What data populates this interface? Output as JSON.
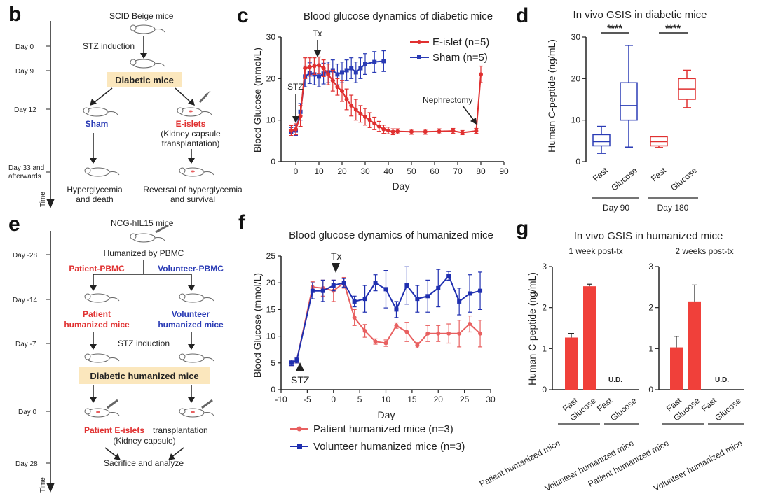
{
  "panels": {
    "b": {
      "letter": "b",
      "top_label": "SCID Beige mice",
      "stz": "STZ induction",
      "diabetic": "Diabetic mice",
      "sham": "Sham",
      "eislets": "E-islets",
      "kidney1": "(Kidney capsule",
      "kidney2": "transplantation)",
      "hyper1": "Hyperglycemia",
      "hyper2": "and death",
      "rev1": "Reversal of hyperglycemia",
      "rev2": "and survival",
      "days": [
        "Day 0",
        "Day 9",
        "Day 12",
        "Day 33 and",
        "afterwards"
      ],
      "time": "Time"
    },
    "e": {
      "letter": "e",
      "top_label": "NCG-hIL15 mice",
      "humanized": "Humanized by PBMC",
      "patient_pbmc": "Patient-PBMC",
      "volunteer_pbmc": "Volunteer-PBMC",
      "patient1": "Patient",
      "patient2": "humanized mice",
      "volunteer1": "Volunteer",
      "volunteer2": "humanized mice",
      "stz": "STZ induction",
      "diabetic": "Diabetic humanized mice",
      "eislets_red": "Patient E-islets",
      "transplant": " transplantation",
      "kidney": "(Kidney capsule)",
      "sacrifice": "Sacrifice and analyze",
      "days": [
        "Day -28",
        "Day -14",
        "Day -7",
        "Day 0",
        "Day 28"
      ],
      "time": "Time"
    }
  },
  "colors": {
    "red": "#e03030",
    "blue": "#2a3bb5",
    "pink": "#e86060",
    "navy": "#1f2fb0",
    "highlight": "#fbe7bd"
  },
  "chart_data": [
    {
      "id": "c",
      "letter": "c",
      "type": "line",
      "title": "Blood glucose dynamics of diabetic mice",
      "xlabel": "Day",
      "ylabel": "Blood Glucose (mmol/L)",
      "xlim": [
        -5,
        90
      ],
      "ylim": [
        0,
        30
      ],
      "xticks": [
        0,
        10,
        20,
        30,
        40,
        50,
        60,
        70,
        80,
        90
      ],
      "yticks": [
        0,
        10,
        20,
        30
      ],
      "annotations": [
        "STZ",
        "Tx",
        "Nephrectomy"
      ],
      "series": [
        {
          "name": "E-islet (n=5)",
          "color": "#e03030",
          "x": [
            -2,
            0,
            2,
            4,
            6,
            8,
            10,
            12,
            14,
            16,
            18,
            20,
            22,
            24,
            26,
            28,
            30,
            32,
            34,
            36,
            38,
            40,
            42,
            44,
            50,
            56,
            62,
            68,
            72,
            78,
            80
          ],
          "y": [
            7.5,
            7.8,
            11,
            22.5,
            22.8,
            23,
            23.2,
            22.5,
            21,
            19.5,
            18,
            17,
            15,
            13.5,
            12.5,
            11.5,
            10.8,
            10,
            9.2,
            8.5,
            7.8,
            7.5,
            7.2,
            7.3,
            7.2,
            7.2,
            7.3,
            7.4,
            7.0,
            7.4,
            21
          ],
          "err": [
            1.2,
            1.3,
            2.5,
            2.5,
            2.2,
            2.0,
            2.0,
            2.0,
            2.5,
            2.5,
            2.0,
            2.5,
            2.5,
            2.5,
            2.5,
            2.0,
            2.0,
            1.8,
            1.5,
            1.2,
            1.0,
            0.8,
            0.7,
            0.6,
            0.6,
            0.6,
            0.6,
            0.6,
            0.5,
            0.6,
            2.0
          ]
        },
        {
          "name": "Sham (n=5)",
          "color": "#2a3bb5",
          "x": [
            -2,
            0,
            2,
            4,
            6,
            8,
            10,
            12,
            14,
            16,
            18,
            20,
            22,
            24,
            26,
            28,
            30,
            34,
            38
          ],
          "y": [
            7.2,
            7.5,
            12,
            20.5,
            21.3,
            21,
            20.5,
            21.2,
            21.5,
            22,
            21,
            21.5,
            22,
            22.5,
            21.5,
            22.5,
            23.5,
            24,
            24.2
          ],
          "err": [
            1.0,
            1.2,
            2.0,
            2.5,
            2.5,
            2.5,
            2.5,
            2.5,
            2.5,
            2.5,
            2.5,
            2.5,
            2.5,
            2.5,
            2.5,
            2.5,
            2.5,
            2.5,
            2.5
          ]
        }
      ]
    },
    {
      "id": "d",
      "letter": "d",
      "type": "box",
      "title": "In vivo GSIS in diabetic mice",
      "ylabel": "Human C-peptide (ng/mL)",
      "ylim": [
        0,
        30
      ],
      "yticks": [
        0,
        10,
        20,
        30
      ],
      "categories": [
        "Fast",
        "Glucose",
        "Fast",
        "Glucose"
      ],
      "groups": [
        "Day 90",
        "Day 180"
      ],
      "significance": [
        "****",
        "****"
      ],
      "boxes": [
        {
          "color": "#2a3bb5",
          "min": 2,
          "q1": 3.8,
          "median": 4.8,
          "q3": 6.5,
          "max": 8.5
        },
        {
          "color": "#2a3bb5",
          "min": 3.5,
          "q1": 10,
          "median": 13.5,
          "q3": 19,
          "max": 28
        },
        {
          "color": "#e03030",
          "min": 3.4,
          "q1": 3.8,
          "median": 4.8,
          "q3": 6,
          "max": 6
        },
        {
          "color": "#e03030",
          "min": 13,
          "q1": 15,
          "median": 17.5,
          "q3": 20,
          "max": 22
        }
      ]
    },
    {
      "id": "f",
      "letter": "f",
      "type": "line",
      "title": "Blood glucose dynamics of humanized mice",
      "xlabel": "Day",
      "ylabel": "Blood Glucose (mmol/L)",
      "xlim": [
        -10,
        30
      ],
      "ylim": [
        0,
        25
      ],
      "xticks": [
        -10,
        -5,
        0,
        5,
        10,
        15,
        20,
        25,
        30
      ],
      "yticks": [
        0,
        5,
        10,
        15,
        20,
        25
      ],
      "annotations": [
        "STZ",
        "Tx"
      ],
      "series": [
        {
          "name": "Patient humanized mice (n=3)",
          "color": "#e86060",
          "x": [
            -8,
            -7,
            -4,
            -2,
            0,
            2,
            4,
            6,
            8,
            10,
            12,
            14,
            16,
            18,
            20,
            22,
            24,
            26,
            28
          ],
          "y": [
            5,
            5.5,
            19.2,
            19,
            18.5,
            20,
            13.5,
            11,
            9,
            8.7,
            12,
            10.8,
            8.3,
            10.5,
            10.5,
            10.5,
            10.5,
            12.3,
            10.5
          ],
          "err": [
            0.5,
            0.5,
            1.0,
            1.5,
            2.0,
            1.0,
            1.5,
            1.2,
            0.5,
            0.6,
            0.5,
            1.8,
            0.5,
            1.5,
            1.5,
            1.8,
            2.5,
            1.5,
            2.5
          ]
        },
        {
          "name": "Volunteer humanized mice (n=3)",
          "color": "#1f2fb0",
          "x": [
            -8,
            -7,
            -4,
            -2,
            0,
            2,
            4,
            6,
            8,
            10,
            12,
            14,
            16,
            18,
            20,
            22,
            24,
            26,
            28
          ],
          "y": [
            5,
            5.5,
            18.5,
            18.5,
            19.5,
            20,
            16.5,
            17,
            20,
            18.8,
            15,
            19.5,
            17,
            17.5,
            19,
            21.3,
            16.5,
            18,
            18.5
          ],
          "err": [
            0.5,
            0.5,
            1.5,
            2.0,
            1.0,
            0.8,
            1.0,
            2.5,
            1.5,
            3.5,
            1.5,
            3.5,
            2.5,
            3.0,
            3.5,
            0.8,
            2.5,
            3.5,
            3.5
          ]
        }
      ]
    },
    {
      "id": "g",
      "letter": "g",
      "type": "bar",
      "title": "In vivo GSIS in humanized mice",
      "ylabel": "Human C-peptide (ng/mL)",
      "ylim": [
        0,
        3
      ],
      "yticks": [
        0,
        1,
        2,
        3
      ],
      "subplots": [
        {
          "subtitle": "1 week post-tx",
          "categories": [
            "Fast",
            "Glucose",
            "Fast",
            "Glucose"
          ],
          "values": [
            1.27,
            2.52,
            0,
            0
          ],
          "err": [
            0.1,
            0.05,
            0,
            0
          ],
          "groups": [
            "Patient humanized mice",
            "Volunteer humanized mice"
          ],
          "ud": "U.D."
        },
        {
          "subtitle": "2 weeks post-tx",
          "categories": [
            "Fast",
            "Glucose",
            "Fast",
            "Glucose"
          ],
          "values": [
            1.03,
            2.15,
            0,
            0
          ],
          "err": [
            0.27,
            0.4,
            0,
            0
          ],
          "groups": [
            "Patient humanized mice",
            "Volunteer humanized mice"
          ],
          "ud": "U.D."
        }
      ]
    }
  ]
}
